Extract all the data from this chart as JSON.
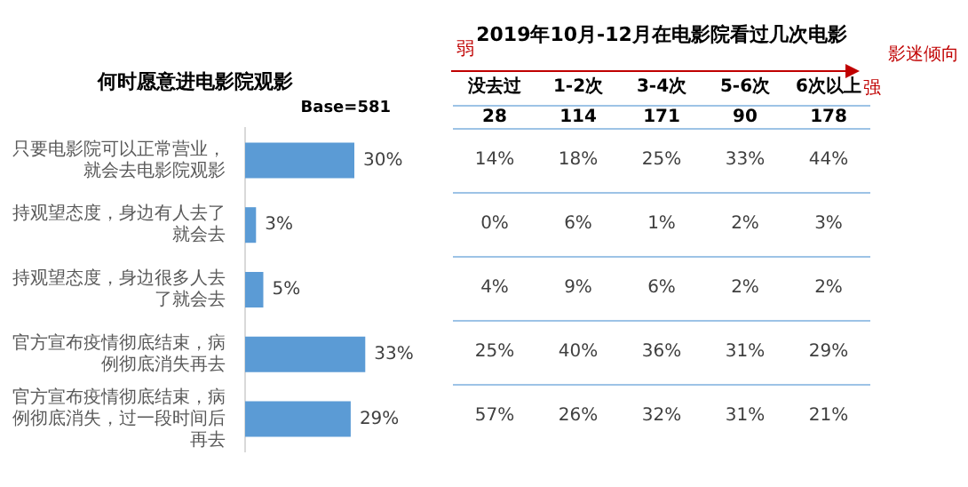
{
  "chart_data": [
    {
      "type": "bar",
      "orientation": "horizontal",
      "title": "何时愿意进电影院观影",
      "subtitle": "Base=581",
      "categories": [
        "只要电影院可以正常营业，就会去电影院观影",
        "持观望态度，身边有人去了就会去",
        "持观望态度，身边很多人去了就会去",
        "官方宣布疫情彻底结束，病例彻底消失再去",
        "官方宣布疫情彻底结束，病例彻底消失，过一段时间后再去"
      ],
      "values": [
        30,
        3,
        5,
        33,
        29
      ],
      "value_labels": [
        "30%",
        "3%",
        "5%",
        "33%",
        "29%"
      ],
      "color": "#5b9bd5"
    },
    {
      "type": "other",
      "title": "2019年10月-12月在电影院看过几次电影",
      "categories": [
        "没去过",
        "1-2次",
        "3-4次",
        "5-6次",
        "6次以上"
      ],
      "cell_labels": [
        [
          "28",
          "114",
          "171",
          "90",
          "178"
        ],
        [
          "14%",
          "18%",
          "25%",
          "33%",
          "44%"
        ],
        [
          "0%",
          "6%",
          "1%",
          "2%",
          "3%"
        ],
        [
          "4%",
          "9%",
          "6%",
          "2%",
          "2%"
        ],
        [
          "25%",
          "40%",
          "36%",
          "31%",
          "29%"
        ],
        [
          "57%",
          "26%",
          "32%",
          "31%",
          "21%"
        ]
      ],
      "annotations": [
        "弱",
        "影迷倾向",
        "强"
      ]
    }
  ]
}
